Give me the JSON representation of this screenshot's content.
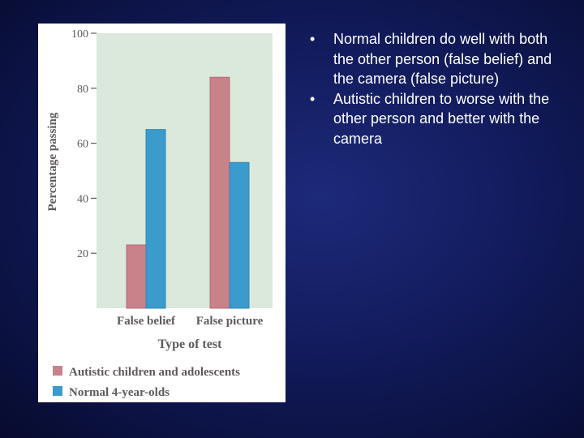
{
  "slide": {
    "bullets": [
      "Normal children do well with both the other person (false belief) and the camera (false picture)",
      "Autistic children to worse with the other person and better with the camera"
    ]
  },
  "colors": {
    "autistic": "#c9818a",
    "normal": "#3a9bcc",
    "plot_bg": "#dbe9dc",
    "text": "#5e5a59"
  },
  "chart_data": {
    "type": "bar",
    "categories": [
      "False belief",
      "False picture"
    ],
    "series": [
      {
        "name": "Autistic children and adolescents",
        "values": [
          23,
          84
        ]
      },
      {
        "name": "Normal 4-year-olds",
        "values": [
          65,
          53
        ]
      }
    ],
    "ylabel": "Percentage passing",
    "xlabel": "Type of test",
    "yticks": [
      20,
      40,
      60,
      80,
      100
    ],
    "ylim": [
      0,
      100
    ],
    "legend_position": "bottom",
    "grid": false
  }
}
